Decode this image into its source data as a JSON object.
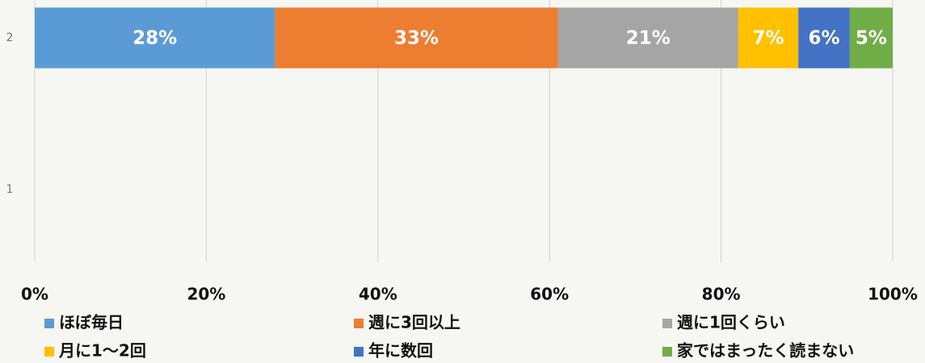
{
  "chart_data": {
    "type": "stacked_barh",
    "categories": [
      "1",
      "2"
    ],
    "series": [
      {
        "name": "ほぼ毎日",
        "color": "#5b9bd5",
        "values": [
          null,
          28
        ],
        "value_labels": [
          null,
          "28%"
        ]
      },
      {
        "name": "週に3回以上",
        "color": "#ed7d31",
        "values": [
          null,
          33
        ],
        "value_labels": [
          null,
          "33%"
        ]
      },
      {
        "name": "週に1回くらい",
        "color": "#a5a5a5",
        "values": [
          null,
          21
        ],
        "value_labels": [
          null,
          "21%"
        ]
      },
      {
        "name": "月に1〜2回",
        "color": "#ffc000",
        "values": [
          null,
          7
        ],
        "value_labels": [
          null,
          "7%"
        ]
      },
      {
        "name": "年に数回",
        "color": "#4472c4",
        "values": [
          null,
          6
        ],
        "value_labels": [
          null,
          "6%"
        ]
      },
      {
        "name": "家ではまったく読まない",
        "color": "#70ad47",
        "values": [
          null,
          5
        ],
        "value_labels": [
          null,
          "5%"
        ]
      }
    ],
    "xlim": [
      0,
      100
    ],
    "xticks": [
      {
        "value": 0,
        "label": "0%"
      },
      {
        "value": 20,
        "label": "20%"
      },
      {
        "value": 40,
        "label": "40%"
      },
      {
        "value": 60,
        "label": "60%"
      },
      {
        "value": 80,
        "label": "80%"
      },
      {
        "value": 100,
        "label": "100%"
      }
    ],
    "grid": true,
    "legend": "bottom"
  }
}
